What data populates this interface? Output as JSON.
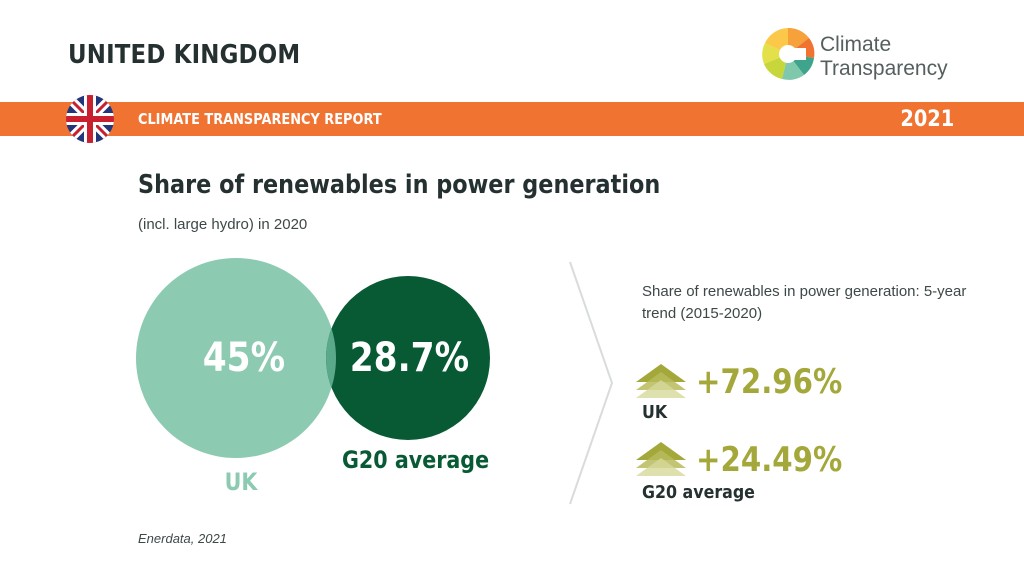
{
  "header": {
    "country": "UNITED KINGDOM",
    "brand_line1": "Climate",
    "brand_line2": "Transparency"
  },
  "banner": {
    "label": "CLIMATE TRANSPARENCY REPORT",
    "year": "2021",
    "flag_icon": "uk-flag-icon"
  },
  "colors": {
    "banner": "#f07331",
    "uk": "#8ccab1",
    "g20": "#075a33",
    "trend": "#a4a83a"
  },
  "chart_data": [
    {
      "type": "venn",
      "title": "Share of renewables in power generation",
      "subtitle": "(incl. large hydro) in 2020",
      "series": [
        {
          "name": "UK",
          "value": 45,
          "display": "45%"
        },
        {
          "name": "G20 average",
          "value": 28.7,
          "display": "28.7%"
        }
      ]
    },
    {
      "type": "table",
      "title": "Share of renewables in power generation: 5-year trend (2015-2020)",
      "series": [
        {
          "name": "UK",
          "value": 72.96,
          "display": "+72.96%",
          "direction": "up"
        },
        {
          "name": "G20 average",
          "value": 24.49,
          "display": "+24.49%",
          "direction": "up"
        }
      ]
    }
  ],
  "footer": {
    "source": "Enerdata, 2021"
  }
}
